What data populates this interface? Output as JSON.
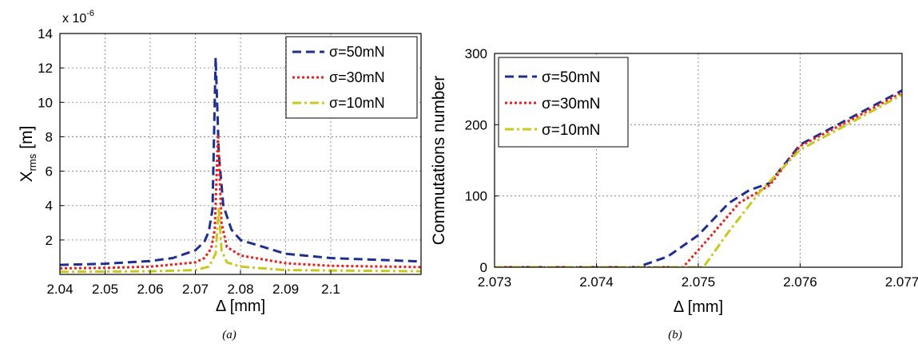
{
  "chart_data": [
    {
      "type": "line",
      "panel_label": "(a)",
      "xlabel": "Δ [mm]",
      "ylabel_main": "X",
      "ylabel_sub": "rms",
      "ylabel_unit": "[m]",
      "y_scale_label": "x 10",
      "y_scale_exp": "-6",
      "xlim": [
        2.04,
        2.12
      ],
      "ylim": [
        0,
        14
      ],
      "xticks": [
        2.04,
        2.05,
        2.06,
        2.07,
        2.08,
        2.09,
        2.1
      ],
      "xtick_labels": [
        "2.04",
        "2.05",
        "2.06",
        "2.07",
        "2.08",
        "2.09",
        "2.1"
      ],
      "yticks": [
        2,
        4,
        6,
        8,
        10,
        12,
        14
      ],
      "ytick_labels": [
        "2",
        "4",
        "6",
        "8",
        "10",
        "12",
        "14"
      ],
      "grid": true,
      "legend_position": "top-right",
      "series": [
        {
          "name": "σ=50mN",
          "color": "#1f2f8f",
          "style": "dashed",
          "points": [
            [
              2.04,
              0.55
            ],
            [
              2.05,
              0.62
            ],
            [
              2.06,
              0.78
            ],
            [
              2.065,
              0.95
            ],
            [
              2.07,
              1.4
            ],
            [
              2.072,
              1.9
            ],
            [
              2.073,
              2.5
            ],
            [
              2.0738,
              3.8
            ],
            [
              2.0745,
              12.6
            ],
            [
              2.0752,
              7.0
            ],
            [
              2.0762,
              4.0
            ],
            [
              2.078,
              2.6
            ],
            [
              2.08,
              2.0
            ],
            [
              2.09,
              1.2
            ],
            [
              2.1,
              0.95
            ],
            [
              2.12,
              0.75
            ]
          ]
        },
        {
          "name": "σ=30mN",
          "color": "#e8201c",
          "style": "dotted",
          "points": [
            [
              2.04,
              0.35
            ],
            [
              2.05,
              0.38
            ],
            [
              2.06,
              0.45
            ],
            [
              2.07,
              0.7
            ],
            [
              2.072,
              0.95
            ],
            [
              2.0735,
              1.5
            ],
            [
              2.0743,
              2.6
            ],
            [
              2.075,
              8.0
            ],
            [
              2.0758,
              3.0
            ],
            [
              2.077,
              1.6
            ],
            [
              2.08,
              1.1
            ],
            [
              2.09,
              0.65
            ],
            [
              2.1,
              0.5
            ],
            [
              2.12,
              0.42
            ]
          ]
        },
        {
          "name": "σ=10mN",
          "color": "#c8c81e",
          "style": "dashdot",
          "points": [
            [
              2.04,
              0.15
            ],
            [
              2.06,
              0.18
            ],
            [
              2.07,
              0.25
            ],
            [
              2.073,
              0.45
            ],
            [
              2.0745,
              1.2
            ],
            [
              2.0752,
              3.9
            ],
            [
              2.0758,
              1.4
            ],
            [
              2.077,
              0.7
            ],
            [
              2.08,
              0.45
            ],
            [
              2.09,
              0.25
            ],
            [
              2.12,
              0.18
            ]
          ]
        }
      ]
    },
    {
      "type": "line",
      "panel_label": "(b)",
      "xlabel": "Δ [mm]",
      "ylabel": "Commutations number",
      "xlim": [
        2.073,
        2.077
      ],
      "ylim": [
        0,
        300
      ],
      "xticks": [
        2.073,
        2.074,
        2.075,
        2.076,
        2.077
      ],
      "xtick_labels": [
        "2.073",
        "2.074",
        "2.075",
        "2.076",
        "2.077"
      ],
      "yticks": [
        0,
        100,
        200,
        300
      ],
      "ytick_labels": [
        "0",
        "100",
        "200",
        "300"
      ],
      "grid": true,
      "legend_position": "top-left",
      "series": [
        {
          "name": "σ=50mN",
          "color": "#1f2f8f",
          "style": "dashed",
          "points": [
            [
              2.073,
              0
            ],
            [
              2.0744,
              0
            ],
            [
              2.0747,
              15
            ],
            [
              2.075,
              45
            ],
            [
              2.0753,
              90
            ],
            [
              2.0755,
              108
            ],
            [
              2.0757,
              118
            ],
            [
              2.076,
              172
            ],
            [
              2.0765,
              210
            ],
            [
              2.077,
              248
            ]
          ]
        },
        {
          "name": "σ=30mN",
          "color": "#e8201c",
          "style": "dotted",
          "points": [
            [
              2.073,
              0
            ],
            [
              2.07485,
              0
            ],
            [
              2.0751,
              40
            ],
            [
              2.0754,
              90
            ],
            [
              2.0757,
              115
            ],
            [
              2.076,
              170
            ],
            [
              2.0765,
              207
            ],
            [
              2.077,
              245
            ]
          ]
        },
        {
          "name": "σ=10mN",
          "color": "#c8c81e",
          "style": "dashdot",
          "points": [
            [
              2.073,
              0
            ],
            [
              2.07505,
              0
            ],
            [
              2.0753,
              50
            ],
            [
              2.0756,
              105
            ],
            [
              2.076,
              165
            ],
            [
              2.0765,
              203
            ],
            [
              2.077,
              242
            ]
          ]
        }
      ]
    }
  ]
}
